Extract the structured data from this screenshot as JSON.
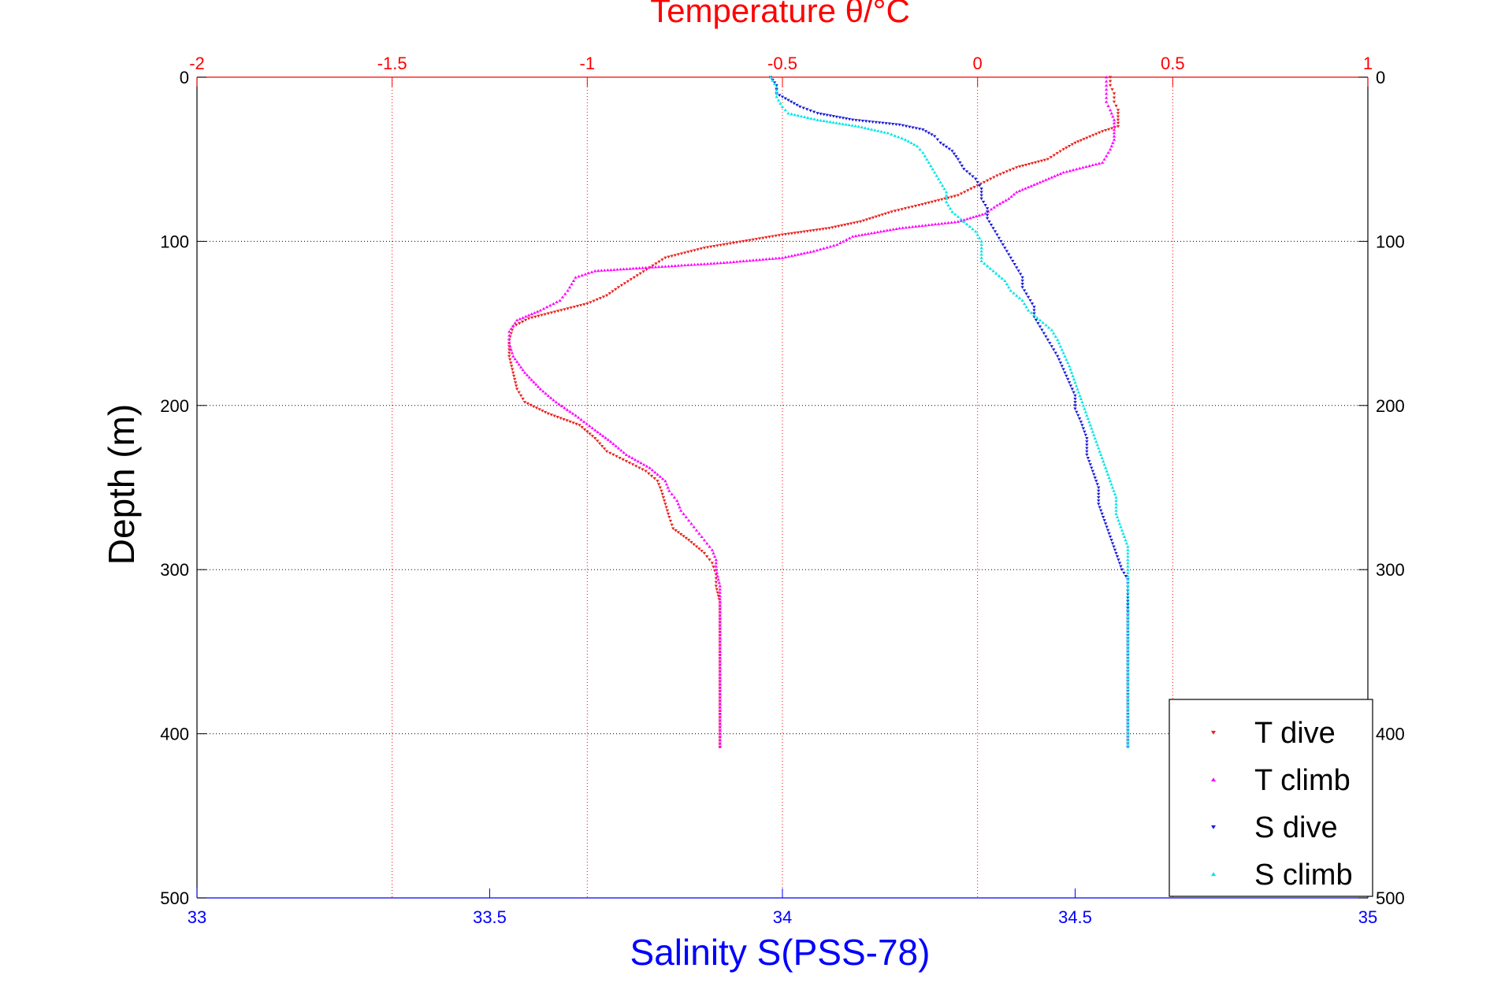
{
  "chart_data": {
    "type": "scatter",
    "title": "Temperature θ/°C",
    "xlabel_bottom": "Salinity S(PSS-78)",
    "xlabel_top": "Temperature θ/°C",
    "ylabel": "Depth (m)",
    "y_range": [
      0,
      500
    ],
    "y_reversed": true,
    "y_ticks": [
      "0",
      "100",
      "200",
      "300",
      "400",
      "500"
    ],
    "x_bottom_range": [
      33,
      35
    ],
    "x_bottom_ticks": [
      "33",
      "33.5",
      "34",
      "34.5",
      "35"
    ],
    "x_top_range": [
      -2,
      1
    ],
    "x_top_ticks": [
      "-2",
      "-1.5",
      "-1",
      "-0.5",
      "0",
      "0.5",
      "1"
    ],
    "grid": true,
    "legend_position": "bottom-right",
    "colors": {
      "top_axis": "#ff0000",
      "bottom_axis": "#0000ff",
      "grid_red": "#ff0000",
      "grid_black": "#000000"
    },
    "series": [
      {
        "name": "T dive",
        "axis": "top",
        "color": "#e8201c",
        "marker": "triangle-down",
        "points": [
          [
            0.34,
            0
          ],
          [
            0.34,
            5
          ],
          [
            0.35,
            10
          ],
          [
            0.35,
            15
          ],
          [
            0.36,
            20
          ],
          [
            0.36,
            26
          ],
          [
            0.36,
            30
          ],
          [
            0.32,
            33
          ],
          [
            0.28,
            37
          ],
          [
            0.25,
            40
          ],
          [
            0.22,
            44
          ],
          [
            0.18,
            50
          ],
          [
            0.1,
            55
          ],
          [
            0.05,
            60
          ],
          [
            0.0,
            66
          ],
          [
            -0.05,
            72
          ],
          [
            -0.15,
            78
          ],
          [
            -0.22,
            82
          ],
          [
            -0.3,
            88
          ],
          [
            -0.38,
            92
          ],
          [
            -0.5,
            96
          ],
          [
            -0.6,
            100
          ],
          [
            -0.7,
            104
          ],
          [
            -0.8,
            110
          ],
          [
            -0.84,
            116
          ],
          [
            -0.88,
            122
          ],
          [
            -0.92,
            128
          ],
          [
            -0.95,
            133
          ],
          [
            -1.0,
            138
          ],
          [
            -1.05,
            141
          ],
          [
            -1.1,
            144
          ],
          [
            -1.15,
            147
          ],
          [
            -1.19,
            152
          ],
          [
            -1.2,
            160
          ],
          [
            -1.2,
            170
          ],
          [
            -1.19,
            180
          ],
          [
            -1.18,
            190
          ],
          [
            -1.16,
            198
          ],
          [
            -1.1,
            205
          ],
          [
            -1.02,
            212
          ],
          [
            -0.98,
            220
          ],
          [
            -0.95,
            228
          ],
          [
            -0.9,
            234
          ],
          [
            -0.85,
            240
          ],
          [
            -0.82,
            246
          ],
          [
            -0.81,
            252
          ],
          [
            -0.8,
            260
          ],
          [
            -0.79,
            268
          ],
          [
            -0.78,
            275
          ],
          [
            -0.74,
            282
          ],
          [
            -0.7,
            290
          ],
          [
            -0.68,
            296
          ],
          [
            -0.67,
            303
          ],
          [
            -0.67,
            310
          ],
          [
            -0.66,
            320
          ],
          [
            -0.66,
            340
          ],
          [
            -0.66,
            360
          ],
          [
            -0.66,
            380
          ],
          [
            -0.66,
            400
          ],
          [
            -0.66,
            408
          ]
        ]
      },
      {
        "name": "T climb",
        "axis": "top",
        "color": "#ff00ff",
        "marker": "triangle-up",
        "points": [
          [
            0.33,
            0
          ],
          [
            0.33,
            5
          ],
          [
            0.33,
            10
          ],
          [
            0.33,
            15
          ],
          [
            0.34,
            20
          ],
          [
            0.35,
            26
          ],
          [
            0.35,
            32
          ],
          [
            0.35,
            38
          ],
          [
            0.34,
            44
          ],
          [
            0.32,
            52
          ],
          [
            0.22,
            58
          ],
          [
            0.16,
            64
          ],
          [
            0.1,
            70
          ],
          [
            0.08,
            74
          ],
          [
            0.05,
            78
          ],
          [
            0.02,
            83
          ],
          [
            -0.05,
            88
          ],
          [
            -0.2,
            92
          ],
          [
            -0.32,
            97
          ],
          [
            -0.36,
            102
          ],
          [
            -0.42,
            106
          ],
          [
            -0.5,
            110
          ],
          [
            -0.65,
            113
          ],
          [
            -0.85,
            116
          ],
          [
            -0.98,
            118
          ],
          [
            -1.03,
            122
          ],
          [
            -1.04,
            126
          ],
          [
            -1.05,
            130
          ],
          [
            -1.07,
            136
          ],
          [
            -1.12,
            142
          ],
          [
            -1.18,
            148
          ],
          [
            -1.2,
            155
          ],
          [
            -1.2,
            162
          ],
          [
            -1.19,
            170
          ],
          [
            -1.16,
            180
          ],
          [
            -1.12,
            190
          ],
          [
            -1.08,
            198
          ],
          [
            -1.03,
            206
          ],
          [
            -0.98,
            215
          ],
          [
            -0.94,
            222
          ],
          [
            -0.9,
            230
          ],
          [
            -0.84,
            238
          ],
          [
            -0.8,
            246
          ],
          [
            -0.79,
            252
          ],
          [
            -0.77,
            258
          ],
          [
            -0.76,
            264
          ],
          [
            -0.74,
            270
          ],
          [
            -0.72,
            276
          ],
          [
            -0.7,
            282
          ],
          [
            -0.68,
            288
          ],
          [
            -0.67,
            294
          ],
          [
            -0.67,
            300
          ],
          [
            -0.66,
            310
          ],
          [
            -0.66,
            330
          ],
          [
            -0.66,
            350
          ],
          [
            -0.66,
            370
          ],
          [
            -0.66,
            390
          ],
          [
            -0.66,
            408
          ]
        ]
      },
      {
        "name": "S dive",
        "axis": "bottom",
        "color": "#1a1ad8",
        "marker": "triangle-down",
        "points": [
          [
            33.98,
            0
          ],
          [
            33.99,
            5
          ],
          [
            33.99,
            10
          ],
          [
            34.01,
            14
          ],
          [
            34.03,
            18
          ],
          [
            34.06,
            22
          ],
          [
            34.12,
            26
          ],
          [
            34.2,
            29
          ],
          [
            34.24,
            32
          ],
          [
            34.26,
            36
          ],
          [
            34.27,
            40
          ],
          [
            34.29,
            45
          ],
          [
            34.3,
            50
          ],
          [
            34.31,
            56
          ],
          [
            34.33,
            62
          ],
          [
            34.34,
            68
          ],
          [
            34.34,
            74
          ],
          [
            34.35,
            80
          ],
          [
            34.35,
            86
          ],
          [
            34.36,
            92
          ],
          [
            34.37,
            98
          ],
          [
            34.38,
            104
          ],
          [
            34.39,
            110
          ],
          [
            34.4,
            116
          ],
          [
            34.41,
            122
          ],
          [
            34.41,
            128
          ],
          [
            34.42,
            134
          ],
          [
            34.43,
            140
          ],
          [
            34.43,
            146
          ],
          [
            34.44,
            152
          ],
          [
            34.45,
            158
          ],
          [
            34.46,
            164
          ],
          [
            34.47,
            170
          ],
          [
            34.48,
            178
          ],
          [
            34.49,
            186
          ],
          [
            34.5,
            194
          ],
          [
            34.5,
            202
          ],
          [
            34.51,
            210
          ],
          [
            34.52,
            220
          ],
          [
            34.52,
            230
          ],
          [
            34.53,
            240
          ],
          [
            34.54,
            250
          ],
          [
            34.54,
            260
          ],
          [
            34.55,
            270
          ],
          [
            34.56,
            280
          ],
          [
            34.57,
            290
          ],
          [
            34.58,
            300
          ],
          [
            34.59,
            306
          ],
          [
            34.59,
            315
          ],
          [
            34.59,
            330
          ],
          [
            34.59,
            350
          ],
          [
            34.59,
            370
          ],
          [
            34.59,
            390
          ],
          [
            34.59,
            408
          ]
        ]
      },
      {
        "name": "S climb",
        "axis": "bottom",
        "color": "#00e5e5",
        "marker": "triangle-up",
        "points": [
          [
            33.98,
            0
          ],
          [
            33.99,
            6
          ],
          [
            33.99,
            12
          ],
          [
            34.0,
            18
          ],
          [
            34.01,
            22
          ],
          [
            34.06,
            26
          ],
          [
            34.13,
            30
          ],
          [
            34.18,
            34
          ],
          [
            34.21,
            38
          ],
          [
            34.23,
            42
          ],
          [
            34.24,
            46
          ],
          [
            34.25,
            52
          ],
          [
            34.26,
            58
          ],
          [
            34.27,
            64
          ],
          [
            34.28,
            70
          ],
          [
            34.28,
            76
          ],
          [
            34.29,
            82
          ],
          [
            34.31,
            88
          ],
          [
            34.33,
            94
          ],
          [
            34.34,
            100
          ],
          [
            34.34,
            106
          ],
          [
            34.34,
            112
          ],
          [
            34.36,
            118
          ],
          [
            34.38,
            124
          ],
          [
            34.39,
            130
          ],
          [
            34.41,
            136
          ],
          [
            34.42,
            142
          ],
          [
            34.44,
            148
          ],
          [
            34.46,
            154
          ],
          [
            34.47,
            160
          ],
          [
            34.48,
            168
          ],
          [
            34.49,
            176
          ],
          [
            34.5,
            186
          ],
          [
            34.51,
            196
          ],
          [
            34.52,
            206
          ],
          [
            34.53,
            216
          ],
          [
            34.54,
            226
          ],
          [
            34.55,
            236
          ],
          [
            34.56,
            246
          ],
          [
            34.57,
            256
          ],
          [
            34.57,
            266
          ],
          [
            34.58,
            276
          ],
          [
            34.59,
            286
          ],
          [
            34.59,
            296
          ],
          [
            34.59,
            310
          ],
          [
            34.59,
            330
          ],
          [
            34.59,
            350
          ],
          [
            34.59,
            370
          ],
          [
            34.59,
            390
          ],
          [
            34.59,
            408
          ]
        ]
      }
    ]
  }
}
